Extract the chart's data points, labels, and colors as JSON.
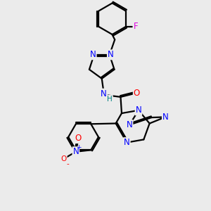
{
  "bg_color": "#ebebeb",
  "atom_colors": {
    "C": "#000000",
    "N": "#0000ff",
    "O": "#ff0000",
    "F": "#e000e0",
    "H": "#008080"
  },
  "bond_color": "#000000",
  "bond_width": 1.6,
  "font_size": 8.5,
  "figsize": [
    3.0,
    3.0
  ],
  "dpi": 100
}
